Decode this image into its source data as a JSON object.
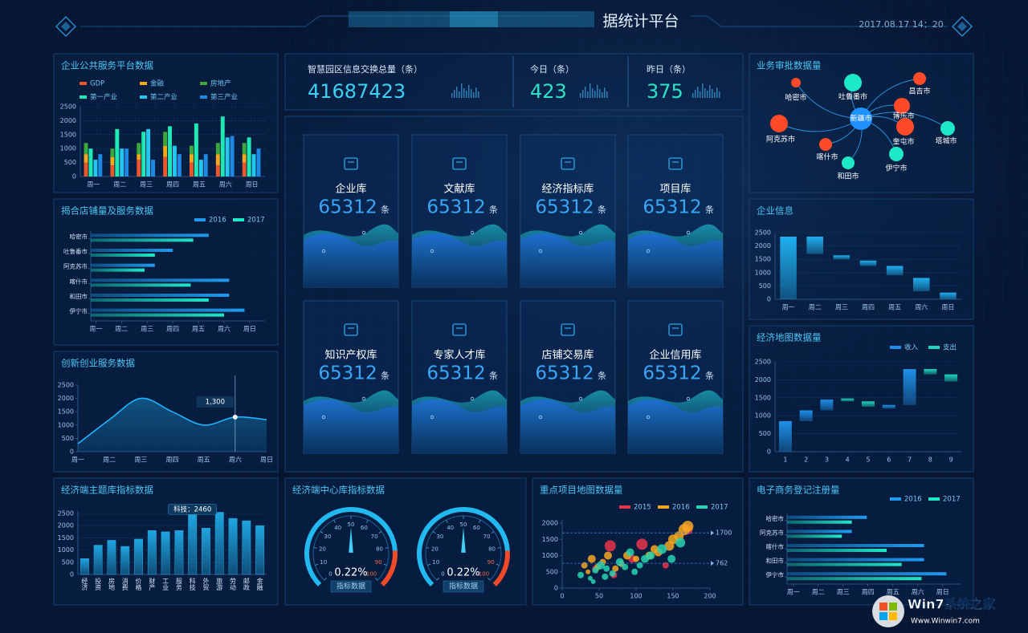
{
  "header": {
    "title": "据统计平台",
    "datetime": "2017.08.17  14：20"
  },
  "stats": [
    {
      "label": "智慧园区信息交换总量（条）",
      "value": 41687423
    },
    {
      "label": "今日（条）",
      "value": 423
    },
    {
      "label": "昨日（条）",
      "value": 375
    }
  ],
  "libraries": [
    {
      "name": "企业库",
      "value": 65312,
      "unit": "条"
    },
    {
      "name": "文献库",
      "value": 65312,
      "unit": "条"
    },
    {
      "name": "经济指标库",
      "value": 65312,
      "unit": "条"
    },
    {
      "name": "项目库",
      "value": 65312,
      "unit": "条"
    },
    {
      "name": "知识产权库",
      "value": 65312,
      "unit": "条"
    },
    {
      "name": "专家人才库",
      "value": 65312,
      "unit": "条"
    },
    {
      "name": "店铺交易库",
      "value": 65312,
      "unit": "条"
    },
    {
      "name": "企业信用库",
      "value": 65312,
      "unit": "条"
    }
  ],
  "network": {
    "title": "业务审批数据量",
    "nodes": [
      {
        "label": "哈密市",
        "color": "#ff4a2a"
      },
      {
        "label": "吐鲁番市",
        "color": "#1de9c8"
      },
      {
        "label": "昌吉市",
        "color": "#ff4a2a"
      },
      {
        "label": "新疆市",
        "color": "#1e90ff"
      },
      {
        "label": "博乐市",
        "color": "#ff4a2a"
      },
      {
        "label": "阿克苏市",
        "color": "#ff4a2a"
      },
      {
        "label": "奎屯市",
        "color": "#ff4a2a"
      },
      {
        "label": "塔城市",
        "color": "#1de9c8"
      },
      {
        "label": "喀什市",
        "color": "#ff4a2a"
      },
      {
        "label": "和田市",
        "color": "#1de9c8"
      },
      {
        "label": "伊宁市",
        "color": "#1de9c8"
      }
    ]
  },
  "chart_data": [
    {
      "type": "bar",
      "title": "企业公共服务平台数据",
      "categories": [
        "周一",
        "周二",
        "周三",
        "周四",
        "周五",
        "周六",
        "周日"
      ],
      "series": [
        {
          "name": "GDP",
          "color": "#e9572b",
          "stack": true,
          "values": [
            500,
            400,
            600,
            700,
            500,
            400,
            500
          ]
        },
        {
          "name": "金融",
          "color": "#f2a81d",
          "stack": true,
          "values": [
            300,
            300,
            200,
            400,
            300,
            400,
            300
          ]
        },
        {
          "name": "房地产",
          "color": "#3aa83a",
          "stack": true,
          "values": [
            400,
            300,
            400,
            500,
            300,
            400,
            400
          ]
        },
        {
          "name": "第一产业",
          "color": "#1de9b6",
          "values": [
            1000,
            1700,
            1600,
            1800,
            1900,
            2150,
            1400
          ]
        },
        {
          "name": "第二产业",
          "color": "#22c6f0",
          "values": [
            600,
            1000,
            1700,
            1100,
            600,
            1400,
            800
          ]
        },
        {
          "name": "第三产业",
          "color": "#1e88e5",
          "values": [
            800,
            1000,
            600,
            800,
            800,
            1450,
            1000
          ]
        }
      ],
      "ylim": [
        0,
        2500
      ],
      "yticks": [
        0,
        500,
        1000,
        1500,
        2000,
        2500
      ],
      "grid": true
    },
    {
      "type": "hbar",
      "title": "揭合店铺量及服务数据",
      "categories": [
        "哈密市",
        "吐鲁番市",
        "阿克苏市",
        "喀什市",
        "和田市",
        "伊宁市"
      ],
      "series": [
        {
          "name": "2016",
          "color": "#1e9bf0",
          "values": [
            4.6,
            3.2,
            2.5,
            5.4,
            5.4,
            6.0
          ]
        },
        {
          "name": "2017",
          "color": "#1de9c8",
          "values": [
            4.0,
            2.5,
            2.1,
            3.9,
            4.6,
            5.2
          ]
        }
      ],
      "xlim": [
        0,
        6.8
      ],
      "xticks": [
        {
          "value": 0.2,
          "label": "周一"
        },
        {
          "value": 1.2,
          "label": "周二"
        },
        {
          "value": 2.2,
          "label": "周三"
        },
        {
          "value": 3.2,
          "label": "周四"
        },
        {
          "value": 4.2,
          "label": "周五"
        },
        {
          "value": 5.2,
          "label": "周六"
        },
        {
          "value": 6.2,
          "label": "周日"
        }
      ],
      "legend": "top-right"
    },
    {
      "type": "line",
      "title": "创新创业服务数据",
      "categories": [
        "周一",
        "周二",
        "周三",
        "周四",
        "周五",
        "周六",
        "周日"
      ],
      "values": [
        300,
        1200,
        2000,
        1500,
        1000,
        1300,
        1200
      ],
      "color": "#1fb6ff",
      "ylim": [
        0,
        2500
      ],
      "yticks": [
        0,
        500,
        1000,
        1500,
        2000,
        2500
      ],
      "annotation": {
        "x": "周六",
        "value": 1300,
        "label": "1,300"
      }
    },
    {
      "type": "bar",
      "title": "经济端主题库指标数据",
      "categories": [
        "经济",
        "投资",
        "房地",
        "消费",
        "价格",
        "财产",
        "工业",
        "服务",
        "科技",
        "外贸",
        "旅游",
        "劳动",
        "邮政",
        "金融"
      ],
      "values": [
        650,
        1200,
        1400,
        1150,
        1450,
        1800,
        1750,
        1800,
        2460,
        1900,
        2550,
        2300,
        2200,
        2000
      ],
      "color": "#1fa5e0",
      "ylim": [
        0,
        2600
      ],
      "yticks": [
        0,
        500,
        1000,
        1500,
        2000,
        2500
      ],
      "grid": true,
      "annotation": {
        "category": "科技",
        "value": 2460,
        "label": "科技：2460"
      }
    },
    {
      "type": "gauge",
      "title": "经济端中心库指标数据",
      "values": [
        50,
        50
      ],
      "readouts": [
        "0.22%",
        "0.22%"
      ],
      "caption": "指标数据",
      "lim": [
        0,
        100
      ],
      "ticks": [
        0,
        10,
        20,
        30,
        40,
        50,
        60,
        70,
        80,
        90,
        100
      ]
    },
    {
      "type": "scatter",
      "title": "重点项目地图数据量",
      "series": [
        {
          "name": "2015",
          "color": "#e8344a",
          "x": [
            65,
            108,
            70,
            95,
            140,
            170,
            45
          ],
          "values": [
            1300,
            1350,
            400,
            900,
            700,
            1800,
            600
          ],
          "sizes": [
            7,
            7,
            4,
            5,
            4,
            6,
            4
          ]
        },
        {
          "name": "2016",
          "color": "#f5a623",
          "x": [
            30,
            40,
            48,
            55,
            62,
            80,
            88,
            100,
            118,
            130,
            145,
            150,
            158,
            165,
            170,
            35,
            72,
            125
          ],
          "values": [
            700,
            900,
            650,
            800,
            1000,
            750,
            1000,
            900,
            1000,
            1100,
            1300,
            1500,
            1600,
            1800,
            1900,
            500,
            600,
            1200
          ],
          "sizes": [
            4,
            5,
            4,
            4,
            5,
            4,
            5,
            4,
            5,
            5,
            6,
            6,
            6,
            7,
            7,
            3,
            4,
            5
          ]
        },
        {
          "name": "2017",
          "color": "#27d3b0",
          "x": [
            25,
            38,
            45,
            52,
            60,
            68,
            78,
            85,
            92,
            105,
            112,
            120,
            135,
            148,
            160,
            42,
            58,
            98
          ],
          "values": [
            400,
            300,
            550,
            700,
            600,
            450,
            800,
            650,
            1100,
            700,
            900,
            1000,
            1200,
            900,
            1400,
            200,
            350,
            500
          ],
          "sizes": [
            4,
            3,
            4,
            5,
            4,
            4,
            5,
            4,
            5,
            4,
            5,
            5,
            6,
            5,
            6,
            3,
            4,
            4
          ]
        }
      ],
      "xlim": [
        0,
        200
      ],
      "xticks": [
        0,
        50,
        100,
        150,
        200
      ],
      "ylim": [
        0,
        2100
      ],
      "yticks": [
        0,
        500,
        1000,
        1500,
        2000
      ],
      "reference_lines": [
        1700,
        762
      ],
      "legend": "top-right"
    },
    {
      "type": "waterfall",
      "title": "企业信息",
      "categories": [
        "周一",
        "周二",
        "周三",
        "周四",
        "周五",
        "周六",
        "周日"
      ],
      "low": [
        0,
        1700,
        1500,
        1250,
        900,
        300,
        0
      ],
      "high": [
        2350,
        2350,
        1650,
        1450,
        1250,
        800,
        250
      ],
      "color": "#1fb0f0",
      "ylim": [
        0,
        2500
      ],
      "yticks": [
        0,
        500,
        1000,
        1500,
        2000,
        2500
      ],
      "grid": true
    },
    {
      "type": "waterfall",
      "title": "经济地图数据量",
      "categories": [
        "1",
        "2",
        "3",
        "4",
        "5",
        "6",
        "7",
        "8",
        "9"
      ],
      "series": [
        {
          "name": "收入",
          "color": "#1e90e8",
          "low": [
            0,
            850,
            1150,
            null,
            null,
            1200,
            1300,
            null,
            null
          ],
          "high": [
            850,
            1150,
            1450,
            null,
            null,
            1300,
            2300,
            null,
            null
          ]
        },
        {
          "name": "支出",
          "color": "#1fd6c0",
          "low": [
            null,
            null,
            null,
            1400,
            1250,
            null,
            null,
            2150,
            1950
          ],
          "high": [
            null,
            null,
            null,
            1480,
            1400,
            null,
            null,
            2300,
            2150
          ]
        }
      ],
      "ylim": [
        0,
        2500
      ],
      "yticks": [
        0,
        500,
        1000,
        1500,
        2000,
        2500
      ],
      "grid": true,
      "legend": "top-right"
    },
    {
      "type": "hbar",
      "title": "电子商务登记注册量",
      "categories": [
        "哈密市",
        "阿克苏市",
        "喀什市",
        "和田市",
        "伊宁市"
      ],
      "series": [
        {
          "name": "2016",
          "color": "#1e9bf0",
          "values": [
            3.2,
            2.6,
            5.5,
            5.5,
            6.4
          ]
        },
        {
          "name": "2017",
          "color": "#1de9c8",
          "values": [
            2.6,
            2.2,
            4.0,
            4.6,
            5.4
          ]
        }
      ],
      "xlim": [
        0,
        7
      ],
      "xticks": [
        {
          "value": 0.25,
          "label": "周一"
        },
        {
          "value": 1.25,
          "label": "周二"
        },
        {
          "value": 2.25,
          "label": "周三"
        },
        {
          "value": 3.25,
          "label": "周四"
        },
        {
          "value": 4.25,
          "label": "周五"
        },
        {
          "value": 5.25,
          "label": "周六"
        },
        {
          "value": 6.25,
          "label": "周日"
        }
      ],
      "legend": "top-right"
    }
  ],
  "watermark": {
    "brand": "Win7系统之家",
    "url": "Www.Winwin7.com"
  }
}
